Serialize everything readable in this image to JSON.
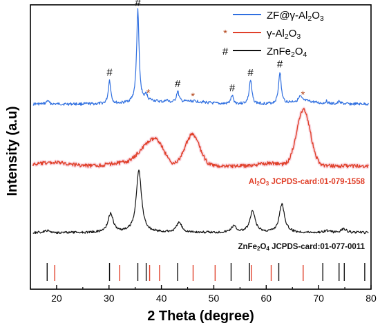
{
  "chart_data": {
    "type": "line",
    "xlabel": "2 Theta (degree)",
    "ylabel": "Intensity (a.u)",
    "xlim": [
      15,
      80
    ],
    "x_ticks": [
      20,
      30,
      40,
      50,
      60,
      70,
      80
    ],
    "legend": [
      {
        "symbol": "",
        "name_parts": [
          [
            "ZF@γ-Al",
            false
          ],
          [
            "2",
            true
          ],
          [
            "O",
            false
          ],
          [
            "3",
            true
          ]
        ],
        "color": "#2f6fe0"
      },
      {
        "symbol": "*",
        "name_parts": [
          [
            "γ-Al",
            false
          ],
          [
            "2",
            true
          ],
          [
            "O",
            false
          ],
          [
            "3",
            true
          ]
        ],
        "color": "#e0402a"
      },
      {
        "symbol": "#",
        "name_parts": [
          [
            "ZnFe",
            false
          ],
          [
            "2",
            true
          ],
          [
            "O",
            false
          ],
          [
            "4",
            true
          ]
        ],
        "color": "#111111"
      }
    ],
    "annotations": [
      {
        "symbol": "#",
        "x": 30.1,
        "series": "ZF@γ-Al2O3"
      },
      {
        "symbol": "#",
        "x": 35.5,
        "series": "ZF@γ-Al2O3"
      },
      {
        "symbol": "*",
        "x": 37.5,
        "series": "ZF@γ-Al2O3"
      },
      {
        "symbol": "#",
        "x": 43.1,
        "series": "ZF@γ-Al2O3"
      },
      {
        "symbol": "*",
        "x": 46.0,
        "series": "ZF@γ-Al2O3"
      },
      {
        "symbol": "#",
        "x": 53.5,
        "series": "ZF@γ-Al2O3"
      },
      {
        "symbol": "#",
        "x": 57.0,
        "series": "ZF@γ-Al2O3"
      },
      {
        "symbol": "#",
        "x": 62.6,
        "series": "ZF@γ-Al2O3"
      },
      {
        "symbol": "*",
        "x": 67.0,
        "series": "ZF@γ-Al2O3"
      }
    ],
    "series": [
      {
        "name": "ZF@γ-Al2O3",
        "color": "#2f6fe0",
        "baseline": 0.05,
        "broad": [
          [
            37.2,
            2.5,
            0.035
          ],
          [
            45.9,
            2.5,
            0.03
          ],
          [
            67.0,
            2.0,
            0.035
          ]
        ],
        "peaks": [
          [
            18.3,
            0.25,
            0.04
          ],
          [
            30.1,
            0.28,
            0.26
          ],
          [
            35.5,
            0.28,
            1.0
          ],
          [
            37.1,
            0.25,
            0.06
          ],
          [
            41.0,
            0.25,
            0.03
          ],
          [
            43.1,
            0.3,
            0.12
          ],
          [
            53.5,
            0.3,
            0.09
          ],
          [
            57.0,
            0.3,
            0.26
          ],
          [
            62.6,
            0.3,
            0.35
          ],
          [
            66.5,
            0.3,
            0.05
          ],
          [
            71.5,
            0.3,
            0.03
          ],
          [
            74.0,
            0.3,
            0.03
          ]
        ]
      },
      {
        "name": "γ-Al2O3",
        "color": "#e0402a",
        "baseline": 0.05,
        "broad": [
          [
            19.4,
            3.0,
            0.06
          ],
          [
            31.9,
            2.0,
            0.05
          ],
          [
            37.6,
            2.0,
            0.37
          ],
          [
            39.5,
            1.2,
            0.2
          ],
          [
            45.9,
            1.4,
            0.55
          ],
          [
            60.8,
            2.0,
            0.05
          ],
          [
            67.1,
            1.3,
            1.0
          ]
        ],
        "peaks": []
      },
      {
        "name": "ZnFe2O4",
        "color": "#111111",
        "baseline": 0.03,
        "broad": [],
        "peaks": [
          [
            18.2,
            0.6,
            0.03
          ],
          [
            30.3,
            0.6,
            0.3
          ],
          [
            35.7,
            0.6,
            1.0
          ],
          [
            43.4,
            0.6,
            0.16
          ],
          [
            53.8,
            0.6,
            0.1
          ],
          [
            57.4,
            0.6,
            0.34
          ],
          [
            63.0,
            0.6,
            0.46
          ],
          [
            71.5,
            0.6,
            0.03
          ],
          [
            74.8,
            0.6,
            0.06
          ]
        ]
      }
    ],
    "card_labels": [
      {
        "parts": [
          [
            "Al",
            false
          ],
          [
            "2",
            true
          ],
          [
            "O",
            false
          ],
          [
            "3",
            true
          ],
          [
            " JCPDS-card:01-079-1558",
            false
          ]
        ],
        "color": "#e0402a"
      },
      {
        "parts": [
          [
            "ZnFe",
            false
          ],
          [
            "2",
            true
          ],
          [
            "O",
            false
          ],
          [
            "4",
            true
          ],
          [
            " JCPDS-card:01-077-0011",
            false
          ]
        ],
        "color": "#111111"
      }
    ],
    "reference_lines": {
      "ZnFe2O4": {
        "color": "#111111",
        "positions": [
          18.2,
          30.1,
          35.5,
          37.1,
          43.1,
          53.3,
          56.8,
          62.4,
          70.8,
          73.9,
          74.9,
          78.8
        ]
      },
      "Al2O3": {
        "color": "#e0402a",
        "positions": [
          19.5,
          31.9,
          37.6,
          39.5,
          45.9,
          50.1,
          57.0,
          60.8,
          66.9
        ]
      }
    }
  }
}
